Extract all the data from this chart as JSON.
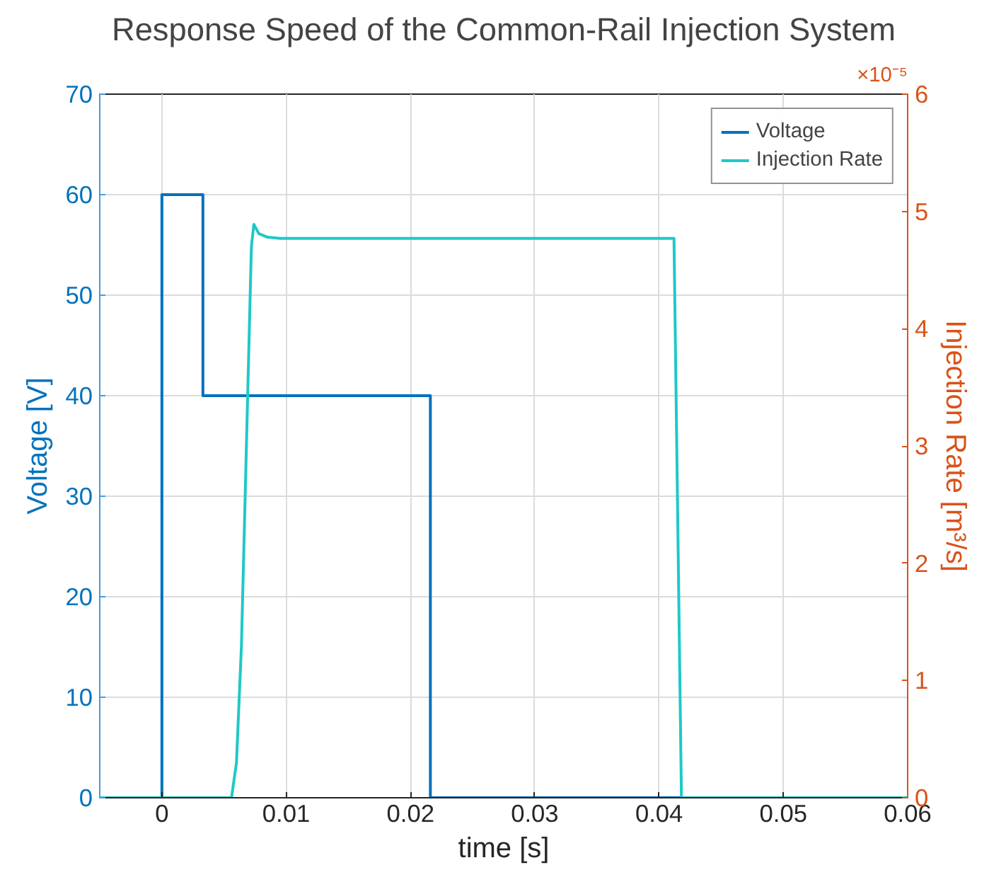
{
  "chart_data": {
    "type": "line",
    "title": "Response Speed of the Common-Rail Injection System",
    "xlabel": "time [s]",
    "ylabel": "Voltage [V]",
    "y2label": "Injection Rate [m³/s]",
    "annotations": [
      "×10⁻⁵"
    ],
    "xlim": [
      -0.005,
      0.06
    ],
    "xticks": [
      0,
      0.01,
      0.02,
      0.03,
      0.04,
      0.05,
      0.06
    ],
    "ylim": [
      0,
      70
    ],
    "yticks": [
      0,
      10,
      20,
      30,
      40,
      50,
      60,
      70
    ],
    "y2lim": [
      0,
      6
    ],
    "y2ticks": [
      0,
      1,
      2,
      3,
      4,
      5,
      6
    ],
    "grid": true,
    "legend": "top right",
    "series": [
      {
        "name": "Voltage",
        "color": "#0072bd",
        "x": [
          -0.005,
          0,
          0,
          0.0033,
          0.0033,
          0.0216,
          0.0216,
          0.06
        ],
        "values": [
          0,
          0,
          60,
          60,
          40,
          40,
          0,
          0
        ]
      },
      {
        "name": "Injection Rate",
        "color": "#1fc8c8",
        "axis": "y2",
        "x": [
          -0.005,
          0.0056,
          0.006,
          0.0064,
          0.0068,
          0.0072,
          0.0074,
          0.0078,
          0.0085,
          0.0095,
          0.0412,
          0.0418,
          0.06
        ],
        "values": [
          0,
          0,
          0.3,
          1.3,
          3.0,
          4.7,
          4.89,
          4.81,
          4.78,
          4.77,
          4.77,
          0,
          0
        ]
      }
    ]
  }
}
